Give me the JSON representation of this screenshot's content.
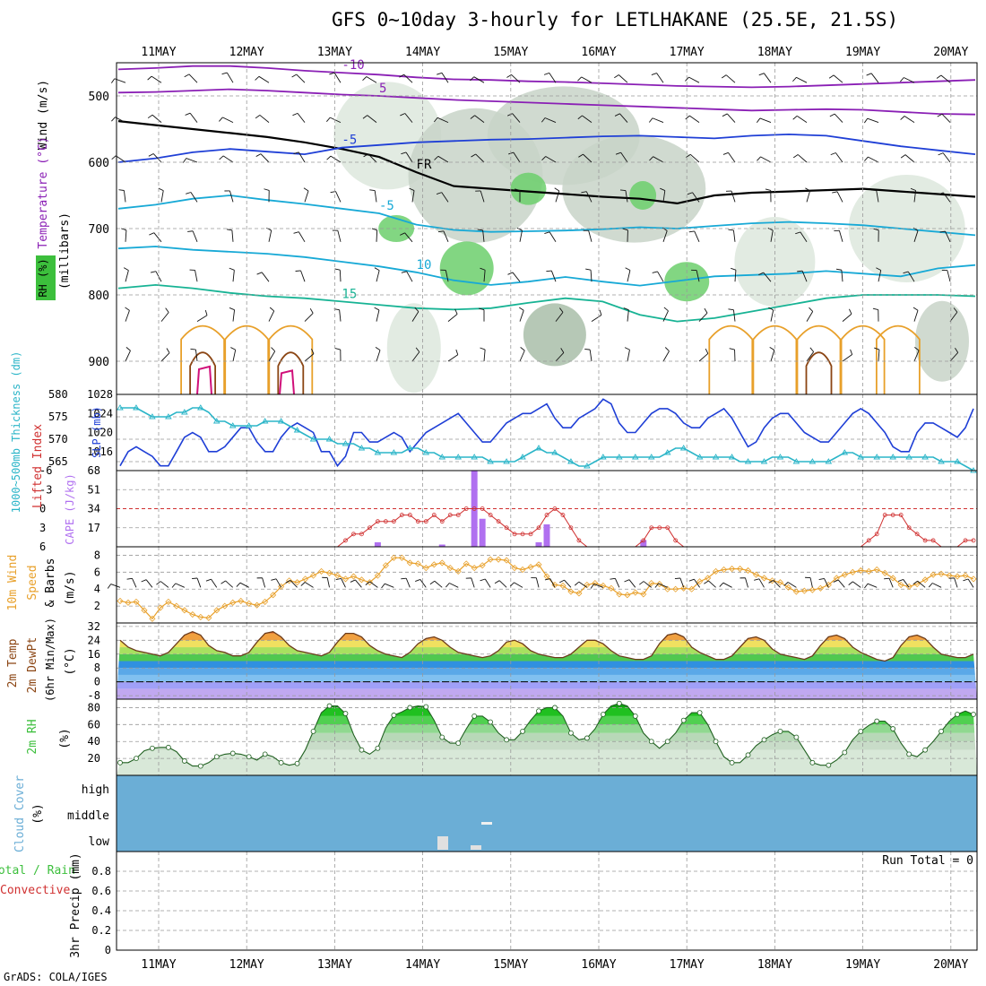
{
  "title": "GFS 0~10day 3-hourly for LETLHAKANE (25.5E, 21.5S)",
  "credit": "GrADS: COLA/IGES",
  "colors": {
    "purple": "#8a1fb5",
    "blue": "#1f3fd6",
    "cyan": "#17a9d6",
    "teal": "#17b394",
    "orange": "#e8a02a",
    "brown": "#8b4513",
    "magenta": "#d0107a",
    "green": "#3cbf3c",
    "cloud": "#6baed6",
    "red": "#d03030",
    "thick": "#2bb5c8",
    "lavender": "#b070f0",
    "grey": "#a0a0a0"
  },
  "chart_data": [
    {
      "id": "upper_air",
      "type": "heatmap",
      "title_parts": [
        "Wind (m/s)",
        "Temperature (°C)",
        "RH (%)"
      ],
      "ylabel": "(millibars)",
      "x_dates": [
        "11MAY",
        "12MAY",
        "13MAY",
        "14MAY",
        "15MAY",
        "16MAY",
        "17MAY",
        "18MAY",
        "19MAY",
        "20MAY"
      ],
      "ylim": [
        950,
        450
      ],
      "yticks": [
        500,
        600,
        700,
        800,
        900
      ],
      "isotherms": [
        {
          "label": "-10",
          "series": "purple",
          "p": [
            460,
            458,
            455,
            455,
            458,
            462,
            465,
            468,
            472,
            475,
            476,
            478,
            479,
            481,
            483,
            485,
            486,
            487,
            486,
            484,
            482,
            480,
            478,
            476
          ]
        },
        {
          "label": "5",
          "series": "purple",
          "p": [
            495,
            494,
            492,
            490,
            492,
            495,
            498,
            500,
            503,
            506,
            508,
            510,
            512,
            514,
            516,
            518,
            520,
            522,
            521,
            520,
            521,
            524,
            527,
            528
          ]
        },
        {
          "label": "FR",
          "series": "black",
          "p": [
            538,
            544,
            550,
            556,
            562,
            570,
            580,
            592,
            615,
            636,
            640,
            644,
            648,
            652,
            655,
            662,
            650,
            646,
            644,
            642,
            640,
            644,
            648,
            652
          ]
        },
        {
          "label": "-5",
          "series": "blue",
          "p": [
            600,
            594,
            585,
            580,
            584,
            588,
            578,
            574,
            570,
            568,
            566,
            565,
            563,
            561,
            560,
            562,
            564,
            560,
            558,
            560,
            568,
            576,
            582,
            588
          ]
        },
        {
          "label": "-5",
          "series": "cyan",
          "p": [
            670,
            664,
            655,
            650,
            657,
            663,
            670,
            677,
            694,
            702,
            705,
            704,
            703,
            701,
            698,
            700,
            696,
            692,
            690,
            692,
            695,
            700,
            705,
            710
          ]
        },
        {
          "label": "10",
          "series": "cyan",
          "p": [
            730,
            727,
            732,
            735,
            738,
            743,
            750,
            757,
            766,
            778,
            785,
            780,
            773,
            780,
            786,
            779,
            772,
            770,
            768,
            764,
            768,
            772,
            760,
            755
          ]
        },
        {
          "label": "15",
          "series": "teal",
          "p": [
            790,
            785,
            790,
            797,
            802,
            805,
            810,
            815,
            820,
            822,
            820,
            812,
            805,
            810,
            830,
            840,
            835,
            825,
            815,
            805,
            800,
            800,
            800,
            802
          ]
        }
      ],
      "rh_levels": [
        "70",
        "80",
        "90"
      ]
    },
    {
      "id": "slp_thickness",
      "type": "line",
      "ylabel_left": "1000~500mb Thickness (dm)",
      "ylabel_right": "SLP (mb)",
      "yticks_left": [
        565,
        570,
        575,
        580
      ],
      "yticks_right": [
        1016,
        1020,
        1024,
        1028
      ],
      "ylim_left": [
        563,
        580
      ],
      "ylim_right": [
        1012,
        1028
      ],
      "series": [
        {
          "name": "SLP",
          "color": "blue",
          "values": [
            1013,
            1016,
            1017,
            1016,
            1015,
            1013,
            1013,
            1016,
            1019,
            1020,
            1019,
            1016,
            1016,
            1017,
            1019,
            1021,
            1021,
            1018,
            1016,
            1016,
            1019,
            1021,
            1022,
            1021,
            1020,
            1016,
            1016,
            1013,
            1015,
            1020,
            1020,
            1018,
            1018,
            1019,
            1020,
            1019,
            1016,
            1018,
            1020,
            1021,
            1022,
            1023,
            1024,
            1022,
            1020,
            1018,
            1018,
            1020,
            1022,
            1023,
            1024,
            1024,
            1025,
            1026,
            1023,
            1021,
            1021,
            1023,
            1024,
            1025,
            1027,
            1026,
            1022,
            1020,
            1020,
            1022,
            1024,
            1025,
            1025,
            1024,
            1022,
            1021,
            1021,
            1023,
            1024,
            1025,
            1023,
            1020,
            1017,
            1018,
            1021,
            1023,
            1024,
            1024,
            1022,
            1020,
            1019,
            1018,
            1018,
            1020,
            1022,
            1024,
            1025,
            1024,
            1022,
            1020,
            1017,
            1016,
            1016,
            1020,
            1022,
            1022,
            1021,
            1020,
            1019,
            1021,
            1025
          ]
        },
        {
          "name": "Thickness",
          "color": "thick",
          "values": [
            577,
            577,
            577,
            576,
            575,
            575,
            575,
            576,
            576,
            577,
            577,
            576,
            574,
            574,
            573,
            573,
            573,
            573,
            574,
            574,
            574,
            573,
            572,
            571,
            570,
            570,
            570,
            569,
            569,
            569,
            568,
            568,
            567,
            567,
            567,
            567,
            568,
            568,
            567,
            567,
            566,
            566,
            566,
            566,
            566,
            566,
            565,
            565,
            565,
            565,
            566,
            567,
            568,
            567,
            567,
            566,
            565,
            564,
            564,
            565,
            566,
            566,
            566,
            566,
            566,
            566,
            566,
            566,
            567,
            568,
            568,
            567,
            566,
            566,
            566,
            566,
            566,
            565,
            565,
            565,
            565,
            566,
            566,
            566,
            565,
            565,
            565,
            565,
            565,
            566,
            567,
            567,
            566,
            566,
            566,
            566,
            566,
            566,
            566,
            566,
            566,
            566,
            565,
            565,
            565,
            564,
            563
          ]
        }
      ]
    },
    {
      "id": "cape_li",
      "type": "bar",
      "ylabel_left": "Lifted Index",
      "ylabel_right": "CAPE (J/kg)",
      "yticks_left": [
        "-6",
        "-3",
        "0",
        "3",
        "6"
      ],
      "yticks_right": [
        "68",
        "51",
        "34",
        "17"
      ],
      "li_lim": [
        6,
        -6
      ],
      "cape_lim": [
        0,
        68
      ],
      "cape": [
        {
          "i": 32,
          "v": 4
        },
        {
          "i": 40,
          "v": 2
        },
        {
          "i": 44,
          "v": 68
        },
        {
          "i": 45,
          "v": 25
        },
        {
          "i": 52,
          "v": 4
        },
        {
          "i": 53,
          "v": 20
        },
        {
          "i": 65,
          "v": 6
        }
      ],
      "li": [
        6,
        6,
        6,
        6,
        6,
        6,
        6,
        6,
        6,
        6,
        6,
        6,
        6,
        6,
        6,
        6,
        6,
        6,
        6,
        6,
        6,
        6,
        6,
        6,
        6,
        6,
        6,
        6,
        5,
        4,
        4,
        3,
        2,
        2,
        2,
        1,
        1,
        2,
        2,
        1,
        2,
        1,
        1,
        0,
        0,
        0,
        1,
        2,
        3,
        4,
        4,
        4,
        3,
        1,
        0,
        1,
        3,
        5,
        6,
        6,
        6,
        6,
        6,
        6,
        6,
        5,
        3,
        3,
        3,
        5,
        6,
        6,
        6,
        6,
        6,
        6,
        6,
        6,
        6,
        6,
        6,
        6,
        6,
        6,
        6,
        6,
        6,
        6,
        6,
        6,
        6,
        6,
        6,
        5,
        4,
        1,
        1,
        1,
        3,
        4,
        5,
        5,
        6,
        6,
        6,
        5,
        5
      ]
    },
    {
      "id": "wind10m",
      "type": "line",
      "ylabel": "10m Wind Speed & Barbs (m/s)",
      "yticks": [
        2,
        4,
        6,
        8
      ],
      "ylim": [
        0,
        9
      ],
      "values": [
        2.6,
        2.4,
        2.5,
        1.5,
        0.5,
        1.8,
        2.5,
        2.0,
        1.5,
        1.0,
        0.7,
        0.6,
        1.5,
        2.0,
        2.4,
        2.6,
        2.3,
        2.1,
        2.5,
        3.3,
        4.3,
        5.0,
        4.8,
        5.2,
        5.6,
        6.1,
        5.9,
        5.6,
        5.2,
        5.5,
        5.1,
        4.8,
        5.6,
        6.8,
        7.7,
        7.7,
        7.1,
        7.0,
        6.5,
        6.9,
        7.1,
        6.5,
        6.1,
        7.0,
        6.5,
        6.8,
        7.5,
        7.5,
        7.4,
        6.5,
        6.3,
        6.6,
        6.9,
        5.5,
        4.5,
        4.4,
        3.7,
        3.5,
        4.5,
        4.7,
        4.4,
        4.1,
        3.4,
        3.3,
        3.6,
        3.4,
        4.7,
        4.6,
        4.0,
        4.0,
        4.1,
        4.0,
        4.9,
        5.3,
        6.1,
        6.3,
        6.4,
        6.4,
        6.2,
        5.7,
        5.3,
        5.0,
        4.8,
        4.2,
        3.7,
        3.8,
        3.9,
        4.1,
        4.5,
        5.3,
        5.7,
        6.0,
        6.2,
        6.1,
        6.3,
        5.9,
        5.3,
        4.5,
        4.3,
        4.6,
        5.1,
        5.7,
        5.8,
        5.6,
        5.5,
        5.6,
        5.2
      ]
    },
    {
      "id": "temp2m",
      "type": "area",
      "ylabel": "2m Temp 2m DewPt (6hr Min/Max) (°C)",
      "yticks": [
        -8,
        0,
        8,
        16,
        24,
        32
      ],
      "ylim": [
        -10,
        34
      ],
      "temp": [
        24,
        20,
        18,
        17,
        16,
        15,
        17,
        22,
        27,
        29,
        27,
        21,
        18,
        17,
        15,
        15,
        17,
        23,
        28,
        29,
        26,
        21,
        18,
        17,
        16,
        15,
        17,
        23,
        28,
        28,
        26,
        21,
        18,
        16,
        15,
        14,
        17,
        22,
        25,
        26,
        24,
        20,
        17,
        16,
        15,
        14,
        15,
        18,
        23,
        24,
        22,
        18,
        16,
        15,
        14,
        14,
        16,
        20,
        24,
        24,
        22,
        18,
        15,
        14,
        13,
        13,
        15,
        22,
        27,
        28,
        26,
        20,
        17,
        15,
        13,
        13,
        15,
        20,
        25,
        26,
        24,
        19,
        16,
        15,
        14,
        13,
        15,
        21,
        26,
        27,
        25,
        20,
        17,
        15,
        13,
        12,
        14,
        21,
        26,
        27,
        25,
        20,
        16,
        15,
        14,
        14,
        16
      ]
    },
    {
      "id": "rh2m",
      "type": "area",
      "ylabel": "2m RH (%)",
      "yticks": [
        20,
        40,
        60,
        80
      ],
      "ylim": [
        0,
        90
      ],
      "values": [
        15,
        15,
        20,
        29,
        32,
        33,
        33,
        28,
        17,
        11,
        11,
        15,
        22,
        25,
        26,
        25,
        22,
        18,
        25,
        22,
        15,
        12,
        14,
        30,
        52,
        74,
        82,
        82,
        73,
        48,
        30,
        25,
        32,
        56,
        71,
        75,
        80,
        82,
        81,
        65,
        45,
        38,
        38,
        55,
        70,
        70,
        63,
        50,
        42,
        42,
        52,
        65,
        76,
        80,
        80,
        70,
        50,
        42,
        44,
        55,
        72,
        82,
        85,
        82,
        70,
        50,
        40,
        32,
        40,
        50,
        65,
        74,
        74,
        60,
        40,
        22,
        15,
        15,
        24,
        35,
        42,
        48,
        52,
        52,
        45,
        30,
        15,
        12,
        12,
        18,
        27,
        42,
        52,
        59,
        64,
        64,
        55,
        38,
        25,
        22,
        30,
        40,
        52,
        64,
        72,
        76,
        72
      ]
    },
    {
      "id": "cloud",
      "type": "heatmap",
      "ylabel": "Cloud Cover (%)",
      "levels": [
        "high",
        "middle",
        "low"
      ]
    },
    {
      "id": "precip",
      "type": "bar",
      "ylabel_left": "Total / Rain",
      "ylabel_left2": "Convective",
      "ylabel": "3hr Precip (mm)",
      "yticks": [
        "0",
        "0.2",
        "0.4",
        "0.6",
        "0.8"
      ],
      "ylim": [
        0,
        1.0
      ],
      "run_total": "Run Total = 0"
    }
  ]
}
